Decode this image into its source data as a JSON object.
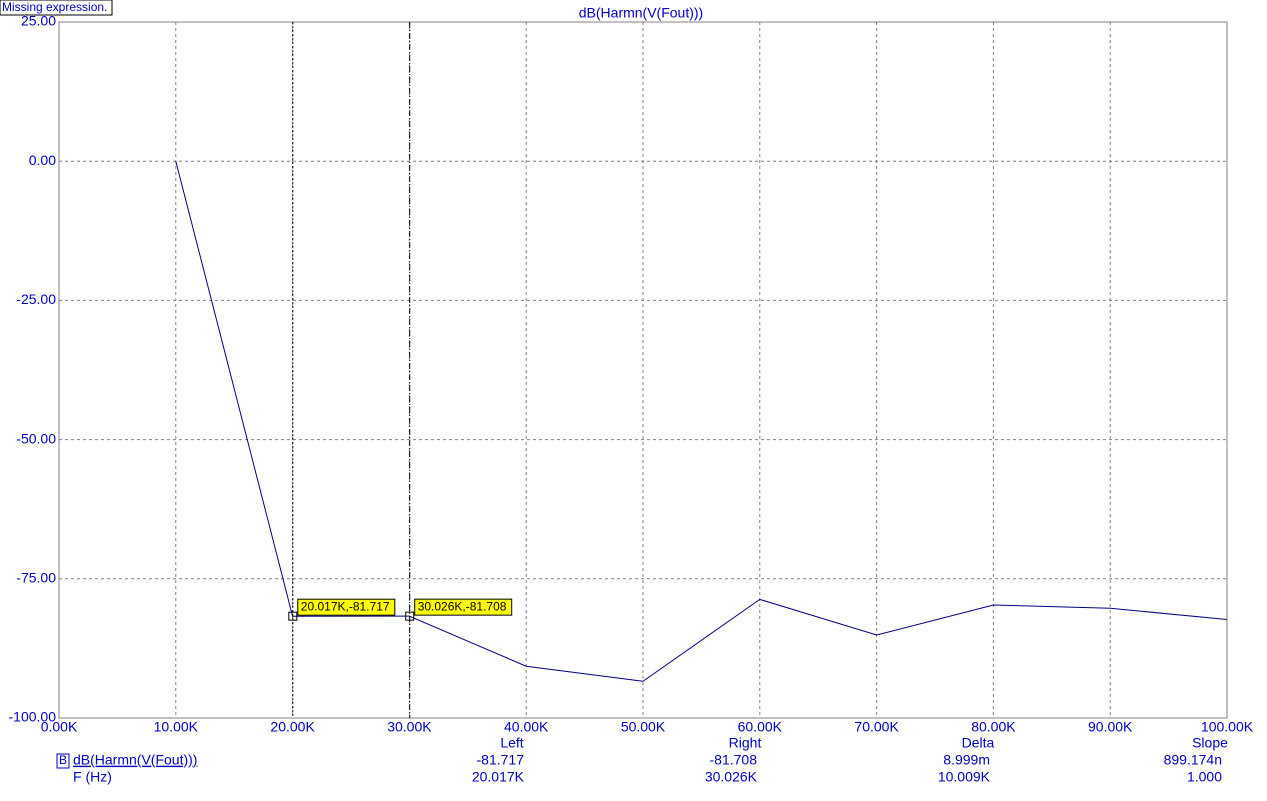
{
  "status": "Missing expression.",
  "chart_data": {
    "type": "line",
    "title": "dB(Harmn(V(Fout)))",
    "x": [
      10000,
      20000,
      30000,
      40000,
      50000,
      60000,
      70000,
      80000,
      90000,
      100000
    ],
    "series": [
      {
        "name": "dB(Harmn(V(Fout)))",
        "color": "#000080",
        "values": [
          0,
          -81.717,
          -81.708,
          -90.7,
          -93.4,
          -78.7,
          -85.1,
          -79.7,
          -80.3,
          -82.3
        ]
      }
    ],
    "xlim": [
      0,
      100000
    ],
    "xticks": [
      {
        "value": 0,
        "label": "0.00K"
      },
      {
        "value": 10000,
        "label": "10.00K"
      },
      {
        "value": 20000,
        "label": "20.00K"
      },
      {
        "value": 30000,
        "label": "30.00K"
      },
      {
        "value": 40000,
        "label": "40.00K"
      },
      {
        "value": 50000,
        "label": "50.00K"
      },
      {
        "value": 60000,
        "label": "60.00K"
      },
      {
        "value": 70000,
        "label": "70.00K"
      },
      {
        "value": 80000,
        "label": "80.00K"
      },
      {
        "value": 90000,
        "label": "90.00K"
      },
      {
        "value": 100000,
        "label": "100.00K"
      }
    ],
    "ylim": [
      -100,
      25
    ],
    "yticks": [
      {
        "value": -100,
        "label": "-100.00"
      },
      {
        "value": -75,
        "label": "-75.00"
      },
      {
        "value": -50,
        "label": "-50.00"
      },
      {
        "value": -25,
        "label": "-25.00"
      },
      {
        "value": 0,
        "label": "0.00"
      },
      {
        "value": 25,
        "label": "25.00"
      }
    ],
    "grid": true,
    "cursors": [
      {
        "x": 20017,
        "y": -81.717,
        "label": "20.017K,-81.717"
      },
      {
        "x": 30026,
        "y": -81.708,
        "label": "30.026K,-81.708"
      }
    ]
  },
  "cursor_table": {
    "marker": "B",
    "columns": [
      "Left",
      "Right",
      "Delta",
      "Slope"
    ],
    "rows": [
      {
        "label": "dB(Harmn(V(Fout)))",
        "cells": [
          "-81.717",
          "-81.708",
          "8.999m",
          "899.174n"
        ]
      },
      {
        "label": "F (Hz)",
        "cells": [
          "20.017K",
          "30.026K",
          "10.009K",
          "1.000"
        ]
      }
    ]
  }
}
